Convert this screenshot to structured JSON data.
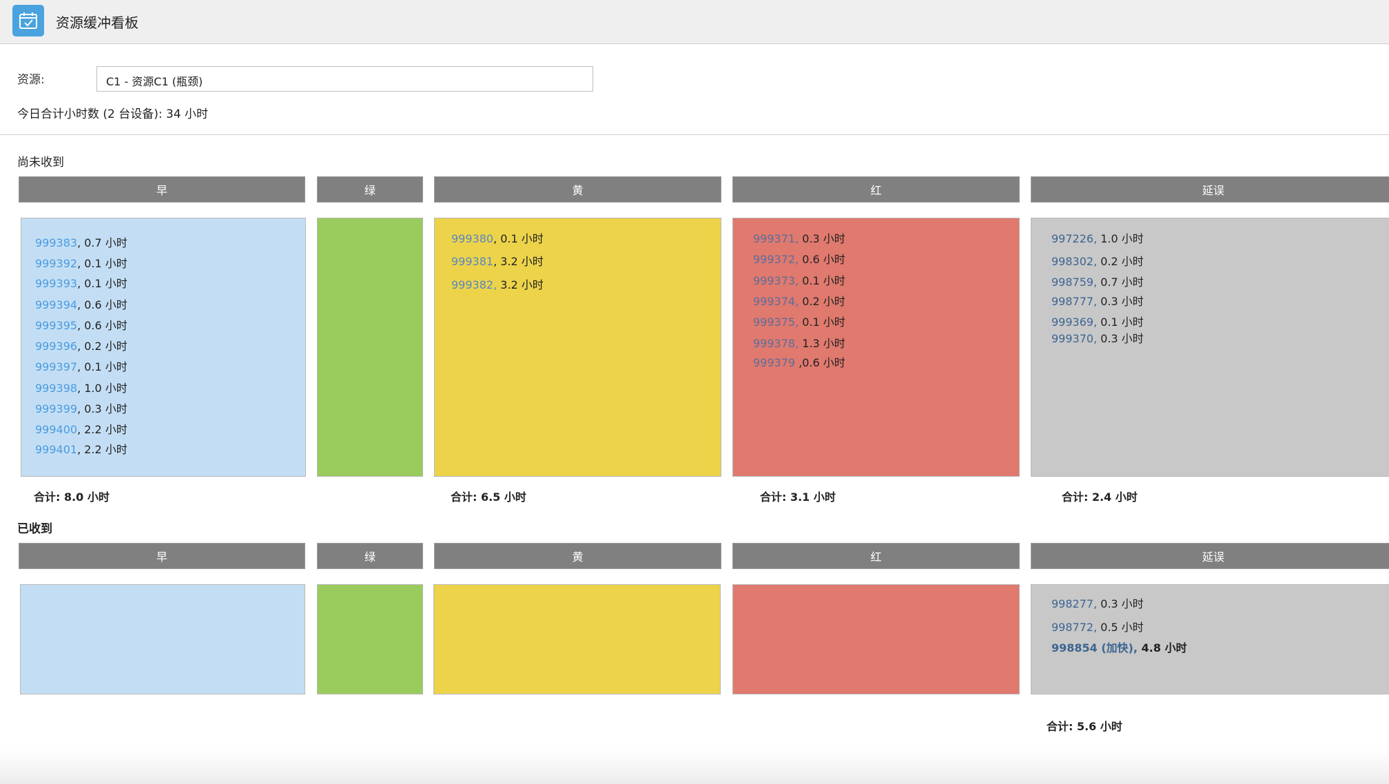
{
  "app": {
    "title": "资源缓冲看板",
    "icon": "calendar-check-icon"
  },
  "resource": {
    "label": "资源:",
    "selected": "C1 - 资源C1 (瓶颈)"
  },
  "today_total": "今日合计小时数 (2 台设备): 34 小时",
  "column_labels": [
    "早",
    "绿",
    "黄",
    "红",
    "延误"
  ],
  "colors": {
    "early": "#c3def4",
    "green": "#9acb5d",
    "yellow": "#ecd34a",
    "red": "#e0796e",
    "delay": "#c8c8c8",
    "header": "#808080"
  },
  "not_received": {
    "title": "尚未收到",
    "early": {
      "items": [
        {
          "id": "999383",
          "rest": ", 0.7 小时"
        },
        {
          "id": "999392",
          "rest": ", 0.1 小时"
        },
        {
          "id": "999393",
          "rest": ", 0.1 小时"
        },
        {
          "id": "999394",
          "rest": ", 0.6 小时"
        },
        {
          "id": "999395",
          "rest": ", 0.6 小时"
        },
        {
          "id": "999396",
          "rest": ", 0.2 小时"
        },
        {
          "id": "999397",
          "rest": ", 0.1 小时"
        },
        {
          "id": "999398",
          "rest": ", 1.0 小时"
        },
        {
          "id": "999399",
          "rest": ", 0.3 小时"
        },
        {
          "id": "999400",
          "rest": ", 2.2 小时"
        },
        {
          "id": "999401",
          "rest": ", 2.2 小时"
        }
      ],
      "total": "合计: 8.0 小时"
    },
    "green": {
      "items": []
    },
    "yellow": {
      "items": [
        {
          "id": "999380",
          "rest": ", 0.1 小时"
        },
        {
          "id": "999381",
          "rest": ", 3.2 小时"
        },
        {
          "id": "999382,",
          "rest": " 3.2 小时"
        }
      ],
      "total": "合计: 6.5 小时"
    },
    "red": {
      "items": [
        {
          "id": "999371,",
          "rest": " 0.3 小时"
        },
        {
          "id": "999372,",
          "rest": " 0.6 小时"
        },
        {
          "id": "999373,",
          "rest": " 0.1 小时"
        },
        {
          "id": "999374,",
          "rest": " 0.2 小时"
        },
        {
          "id": "999375,",
          "rest": " 0.1 小时"
        },
        {
          "id": "999378,",
          "rest": " 1.3 小时"
        },
        {
          "id": "999379",
          "rest": " ,0.6 小时"
        }
      ],
      "total": "合计: 3.1 小时"
    },
    "delay": {
      "items": [
        {
          "id": "997226,",
          "rest": " 1.0 小时"
        },
        {
          "id": "998302,",
          "rest": " 0.2 小时"
        },
        {
          "id": "998759,",
          "rest": " 0.7 小时"
        },
        {
          "id": "998777,",
          "rest": " 0.3 小时"
        },
        {
          "id": "999369,",
          "rest": " 0.1 小时"
        },
        {
          "id": "999370,",
          "rest": " 0.3 小时"
        }
      ],
      "total": "合计: 2.4 小时"
    }
  },
  "received": {
    "title": "已收到",
    "early": {
      "items": []
    },
    "green": {
      "items": []
    },
    "yellow": {
      "items": []
    },
    "red": {
      "items": []
    },
    "delay": {
      "items": [
        {
          "id": "998277,",
          "rest": " 0.3 小时"
        },
        {
          "id": "998772,",
          "rest": " 0.5 小时"
        },
        {
          "id": "998854 (加快),",
          "rest": " 4.8 小时",
          "bold": true
        }
      ],
      "total": "合计: 5.6 小时"
    }
  }
}
